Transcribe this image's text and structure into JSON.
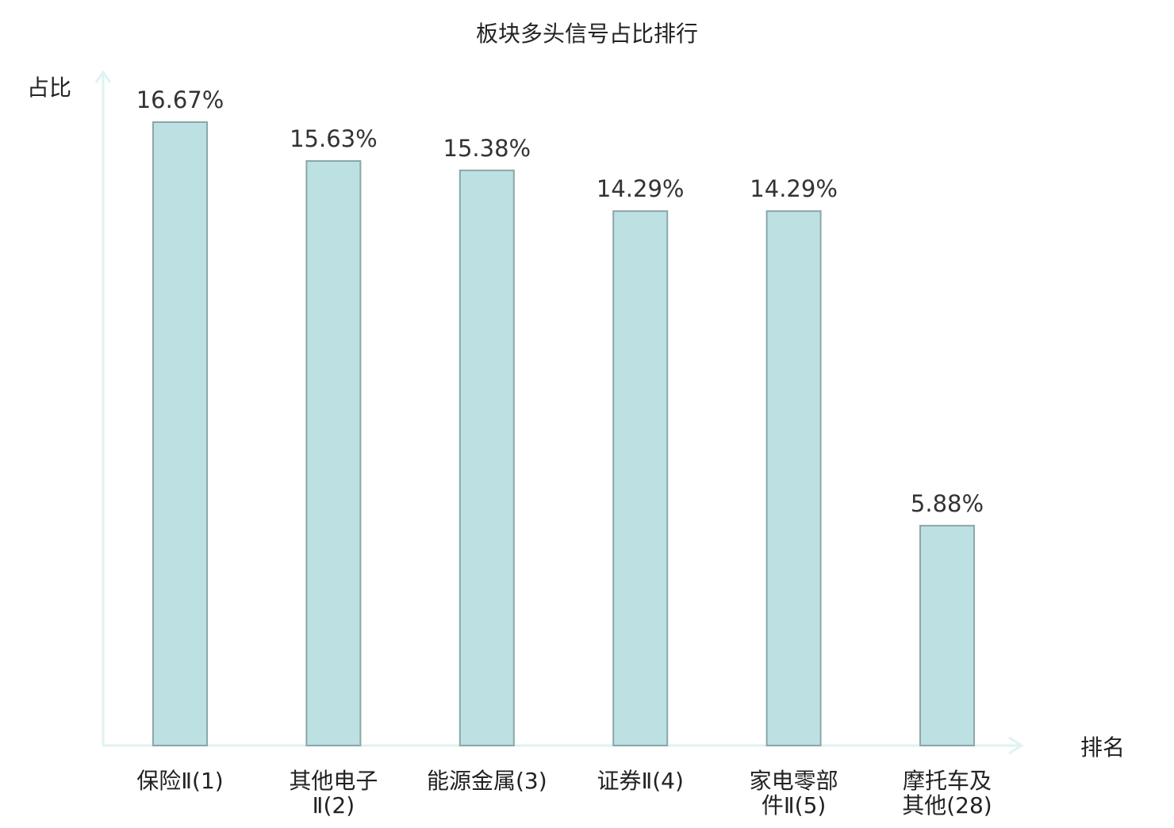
{
  "chart_data": {
    "type": "bar",
    "title": "板块多头信号占比排行",
    "ylabel": "占比",
    "xlabel": "排名",
    "categories": [
      [
        "保险Ⅱ(1)"
      ],
      [
        "其他电子",
        "Ⅱ(2)"
      ],
      [
        "能源金属(3)"
      ],
      [
        "证券Ⅱ(4)"
      ],
      [
        "家电零部",
        "件Ⅱ(5)"
      ],
      [
        "摩托车及",
        "其他(28)"
      ]
    ],
    "values": [
      16.67,
      15.63,
      15.38,
      14.29,
      14.29,
      5.88
    ],
    "value_labels": [
      "16.67%",
      "15.63%",
      "15.38%",
      "14.29%",
      "14.29%",
      "5.88%"
    ],
    "highlight_index": 5,
    "ylim": [
      0,
      16.67
    ],
    "grid": false,
    "legend": "none"
  },
  "colors": {
    "bar_fill": "#bde0e3",
    "bar_stroke": "#8aa7a8",
    "axis": "#e0f2f1",
    "text": "#222222",
    "value_text": "#333333",
    "highlight_text": "#e60000"
  }
}
